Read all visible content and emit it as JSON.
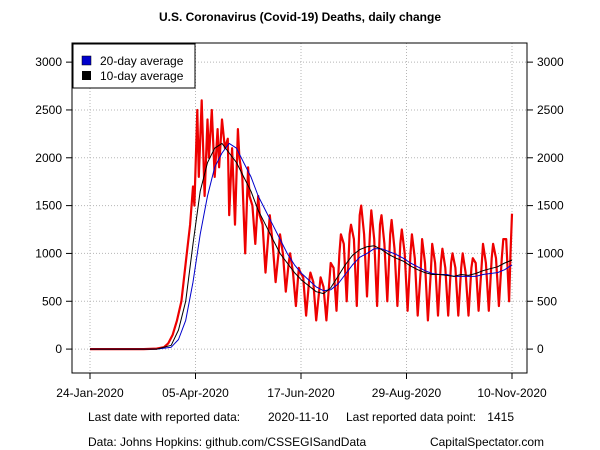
{
  "chart_data": {
    "type": "line",
    "title": "U.S. Coronavirus (Covid-19) Deaths, daily change",
    "xlabel": "",
    "ylabel": "",
    "x_tick_labels": [
      "24-Jan-2020",
      "05-Apr-2020",
      "17-Jun-2020",
      "29-Aug-2020",
      "10-Nov-2020"
    ],
    "x_range": [
      "2020-01-24",
      "2020-11-10"
    ],
    "ylim": [
      -250,
      3200
    ],
    "y_ticks": [
      0,
      500,
      1000,
      1500,
      2000,
      2500,
      3000
    ],
    "grid": true,
    "legend_position": "top-left",
    "series": [
      {
        "name": "daily change",
        "color": "#ee0000",
        "x": [
          "2020-01-24",
          "2020-02-15",
          "2020-03-01",
          "2020-03-10",
          "2020-03-15",
          "2020-03-18",
          "2020-03-21",
          "2020-03-24",
          "2020-03-27",
          "2020-03-30",
          "2020-04-02",
          "2020-04-04",
          "2020-04-05",
          "2020-04-07",
          "2020-04-08",
          "2020-04-10",
          "2020-04-12",
          "2020-04-14",
          "2020-04-15",
          "2020-04-17",
          "2020-04-19",
          "2020-04-21",
          "2020-04-22",
          "2020-04-24",
          "2020-04-26",
          "2020-04-28",
          "2020-04-29",
          "2020-05-01",
          "2020-05-03",
          "2020-05-05",
          "2020-05-06",
          "2020-05-08",
          "2020-05-10",
          "2020-05-12",
          "2020-05-13",
          "2020-05-15",
          "2020-05-17",
          "2020-05-19",
          "2020-05-20",
          "2020-05-22",
          "2020-05-24",
          "2020-05-26",
          "2020-05-27",
          "2020-05-29",
          "2020-05-31",
          "2020-06-02",
          "2020-06-03",
          "2020-06-05",
          "2020-06-07",
          "2020-06-09",
          "2020-06-10",
          "2020-06-12",
          "2020-06-14",
          "2020-06-16",
          "2020-06-17",
          "2020-06-19",
          "2020-06-21",
          "2020-06-23",
          "2020-06-24",
          "2020-06-26",
          "2020-06-28",
          "2020-06-30",
          "2020-07-01",
          "2020-07-03",
          "2020-07-05",
          "2020-07-07",
          "2020-07-08",
          "2020-07-10",
          "2020-07-12",
          "2020-07-14",
          "2020-07-15",
          "2020-07-17",
          "2020-07-19",
          "2020-07-21",
          "2020-07-22",
          "2020-07-24",
          "2020-07-26",
          "2020-07-28",
          "2020-07-29",
          "2020-07-31",
          "2020-08-02",
          "2020-08-04",
          "2020-08-05",
          "2020-08-07",
          "2020-08-09",
          "2020-08-11",
          "2020-08-12",
          "2020-08-14",
          "2020-08-16",
          "2020-08-18",
          "2020-08-19",
          "2020-08-21",
          "2020-08-23",
          "2020-08-25",
          "2020-08-26",
          "2020-08-28",
          "2020-08-30",
          "2020-09-01",
          "2020-09-02",
          "2020-09-04",
          "2020-09-06",
          "2020-09-08",
          "2020-09-09",
          "2020-09-11",
          "2020-09-13",
          "2020-09-15",
          "2020-09-16",
          "2020-09-18",
          "2020-09-20",
          "2020-09-22",
          "2020-09-23",
          "2020-09-25",
          "2020-09-27",
          "2020-09-29",
          "2020-09-30",
          "2020-10-02",
          "2020-10-04",
          "2020-10-06",
          "2020-10-07",
          "2020-10-09",
          "2020-10-11",
          "2020-10-13",
          "2020-10-14",
          "2020-10-16",
          "2020-10-18",
          "2020-10-20",
          "2020-10-21",
          "2020-10-23",
          "2020-10-25",
          "2020-10-27",
          "2020-10-28",
          "2020-10-30",
          "2020-11-01",
          "2020-11-03",
          "2020-11-04",
          "2020-11-06",
          "2020-11-08",
          "2020-11-09",
          "2020-11-10"
        ],
        "values": [
          0,
          0,
          0,
          5,
          20,
          60,
          150,
          300,
          500,
          900,
          1300,
          1700,
          1500,
          2500,
          1800,
          2600,
          1600,
          2400,
          2000,
          2500,
          1800,
          2300,
          1900,
          2400,
          2100,
          2200,
          1400,
          2100,
          1300,
          2300,
          2000,
          1800,
          1000,
          1900,
          1600,
          1500,
          1100,
          1600,
          1400,
          1300,
          800,
          1200,
          1400,
          1100,
          700,
          1000,
          1200,
          1000,
          600,
          900,
          1000,
          800,
          450,
          850,
          800,
          750,
          350,
          700,
          800,
          700,
          300,
          600,
          750,
          650,
          300,
          700,
          900,
          850,
          400,
          1000,
          1200,
          1100,
          500,
          1200,
          1300,
          1150,
          450,
          1400,
          1500,
          1200,
          550,
          1200,
          1450,
          1150,
          450,
          1300,
          1400,
          1100,
          500,
          1200,
          1350,
          1050,
          450,
          1100,
          1250,
          1000,
          400,
          1000,
          1200,
          950,
          350,
          800,
          1150,
          900,
          300,
          800,
          1100,
          900,
          350,
          900,
          1050,
          850,
          350,
          900,
          1000,
          850,
          350,
          850,
          1000,
          800,
          350,
          850,
          950,
          900,
          400,
          850,
          1100,
          900,
          400,
          950,
          1100,
          950,
          450,
          950,
          1150,
          1150,
          500,
          1000,
          1415
        ]
      },
      {
        "name": "20-day average",
        "color": "#0000cc",
        "x": [
          "2020-01-24",
          "2020-03-10",
          "2020-03-20",
          "2020-03-25",
          "2020-03-30",
          "2020-04-04",
          "2020-04-09",
          "2020-04-14",
          "2020-04-19",
          "2020-04-24",
          "2020-04-29",
          "2020-05-04",
          "2020-05-09",
          "2020-05-14",
          "2020-05-19",
          "2020-05-24",
          "2020-05-29",
          "2020-06-03",
          "2020-06-08",
          "2020-06-13",
          "2020-06-18",
          "2020-06-23",
          "2020-06-28",
          "2020-07-03",
          "2020-07-08",
          "2020-07-13",
          "2020-07-18",
          "2020-07-23",
          "2020-07-28",
          "2020-08-02",
          "2020-08-07",
          "2020-08-12",
          "2020-08-17",
          "2020-08-22",
          "2020-08-27",
          "2020-09-01",
          "2020-09-06",
          "2020-09-11",
          "2020-09-16",
          "2020-09-21",
          "2020-09-26",
          "2020-10-01",
          "2020-10-06",
          "2020-10-11",
          "2020-10-16",
          "2020-10-21",
          "2020-10-26",
          "2020-10-31",
          "2020-11-05",
          "2020-11-10"
        ],
        "values": [
          0,
          0,
          20,
          100,
          300,
          700,
          1200,
          1600,
          1900,
          2050,
          2150,
          2100,
          1950,
          1800,
          1600,
          1450,
          1300,
          1150,
          1000,
          880,
          790,
          720,
          650,
          610,
          620,
          680,
          780,
          880,
          960,
          1000,
          1050,
          1050,
          1020,
          990,
          950,
          900,
          860,
          820,
          790,
          780,
          780,
          760,
          760,
          760,
          760,
          780,
          790,
          800,
          830,
          880
        ]
      },
      {
        "name": "10-day average",
        "color": "#000000",
        "x": [
          "2020-01-24",
          "2020-03-10",
          "2020-03-20",
          "2020-03-25",
          "2020-03-30",
          "2020-04-04",
          "2020-04-09",
          "2020-04-14",
          "2020-04-19",
          "2020-04-24",
          "2020-04-29",
          "2020-05-04",
          "2020-05-09",
          "2020-05-14",
          "2020-05-19",
          "2020-05-24",
          "2020-05-29",
          "2020-06-03",
          "2020-06-08",
          "2020-06-13",
          "2020-06-18",
          "2020-06-23",
          "2020-06-28",
          "2020-07-03",
          "2020-07-08",
          "2020-07-13",
          "2020-07-18",
          "2020-07-23",
          "2020-07-28",
          "2020-08-02",
          "2020-08-07",
          "2020-08-12",
          "2020-08-17",
          "2020-08-22",
          "2020-08-27",
          "2020-09-01",
          "2020-09-06",
          "2020-09-11",
          "2020-09-16",
          "2020-09-21",
          "2020-09-26",
          "2020-10-01",
          "2020-10-06",
          "2020-10-11",
          "2020-10-16",
          "2020-10-21",
          "2020-10-26",
          "2020-10-31",
          "2020-11-05",
          "2020-11-10"
        ],
        "values": [
          0,
          0,
          40,
          200,
          500,
          1100,
          1650,
          1950,
          2100,
          2150,
          2050,
          1950,
          1800,
          1650,
          1450,
          1300,
          1150,
          1000,
          900,
          800,
          720,
          660,
          600,
          580,
          640,
          760,
          880,
          980,
          1040,
          1070,
          1080,
          1040,
          990,
          950,
          920,
          870,
          830,
          800,
          780,
          780,
          770,
          760,
          780,
          770,
          790,
          820,
          840,
          860,
          900,
          930
        ]
      }
    ]
  },
  "footer": {
    "last_date_label": "Last date with reported data:",
    "last_date_value": "2020-11-10",
    "last_point_label": "Last reported data point:",
    "last_point_value": "1415",
    "source": "Data: Johns Hopkins: github.com/CSSEGISandData",
    "brand": "CapitalSpectator.com"
  }
}
